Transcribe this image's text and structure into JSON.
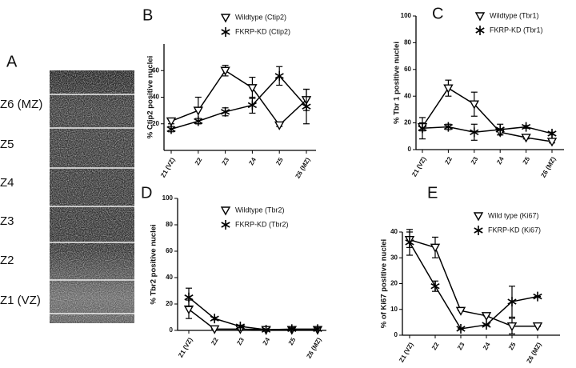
{
  "image_panel": {
    "label": "A",
    "zones": [
      "Z6 (MZ)",
      "Z5",
      "Z4",
      "Z3",
      "Z2",
      "Z1 (VZ)"
    ]
  },
  "chart_data": [
    {
      "type": "line",
      "panel_label": "B",
      "y_label": "% Ctip2 positive nuclei",
      "categories": [
        "Z1 (VZ)",
        "Z2",
        "Z3",
        "Z4",
        "Z5",
        "Z6 (MZ)"
      ],
      "ylim": [
        0,
        80
      ],
      "yticks": [
        20,
        40,
        60
      ],
      "series": [
        {
          "name": "Wildtype (Ctip2)",
          "color": "#000000",
          "marker": "triangle-down",
          "values": [
            22,
            30,
            60,
            47,
            19,
            38
          ],
          "errors": [
            2,
            10,
            4,
            8,
            1,
            8
          ]
        },
        {
          "name": "FKRP-KD (Ctip2)",
          "color": "#000000",
          "marker": "asterisk",
          "values": [
            16,
            22,
            29,
            34,
            56,
            33
          ],
          "errors": [
            2,
            2,
            3,
            6,
            7,
            13
          ]
        }
      ]
    },
    {
      "type": "line",
      "panel_label": "C",
      "y_label": "% Tbr 1 positive nuclei",
      "categories": [
        "Z1 (VZ)",
        "Z2",
        "Z3",
        "Z4",
        "Z5",
        "Z6 (MZ)"
      ],
      "ylim": [
        0,
        100
      ],
      "yticks": [
        0,
        20,
        40,
        60,
        80,
        100
      ],
      "series": [
        {
          "name": "Wildtype (Tbr1)",
          "color": "#000000",
          "marker": "triangle-down",
          "values": [
            17,
            46,
            34,
            13,
            9,
            6
          ],
          "errors": [
            3,
            6,
            9,
            2,
            1,
            1
          ]
        },
        {
          "name": "FKRP-KD (Tbr1)",
          "color": "#000000",
          "marker": "asterisk",
          "values": [
            16,
            17,
            13,
            15,
            17,
            12
          ],
          "errors": [
            8,
            2,
            6,
            4,
            1,
            1
          ]
        }
      ]
    },
    {
      "type": "line",
      "panel_label": "D",
      "y_label": "% Tbr2 positive nuclei",
      "categories": [
        "Z1 (VZ)",
        "Z2",
        "Z3",
        "Z4",
        "Z5",
        "Z6 (MZ)"
      ],
      "ylim": [
        0,
        100
      ],
      "yticks": [
        0,
        20,
        40,
        60,
        80,
        100
      ],
      "series": [
        {
          "name": "Wildtype (Tbr2)",
          "color": "#000000",
          "marker": "triangle-down",
          "values": [
            16,
            1,
            1,
            0.5,
            0.5,
            0.5
          ],
          "errors": [
            7,
            0,
            1,
            0,
            0,
            0
          ]
        },
        {
          "name": "FKRP-KD (Tbr2)",
          "color": "#000000",
          "marker": "asterisk",
          "values": [
            25,
            9,
            3,
            0.5,
            1,
            1
          ],
          "errors": [
            7,
            1,
            1,
            0,
            1,
            1
          ]
        }
      ]
    },
    {
      "type": "line",
      "panel_label": "E",
      "y_label": "% of Ki67 positive nuclei",
      "categories": [
        "Z1 (VZ)",
        "Z2",
        "Z3",
        "Z4",
        "Z5",
        "Z6 (MZ)"
      ],
      "ylim": [
        0,
        40
      ],
      "yticks": [
        0,
        10,
        20,
        30,
        40
      ],
      "series": [
        {
          "name": "Wild type (Ki67)",
          "color": "#000000",
          "marker": "triangle-down",
          "values": [
            37,
            34,
            9.5,
            7.5,
            3.5,
            3.5
          ],
          "errors": [
            3,
            4,
            0,
            0,
            3,
            0
          ]
        },
        {
          "name": "FKRP-KD (Ki67)",
          "color": "#000000",
          "marker": "asterisk",
          "values": [
            36,
            19,
            2.5,
            4,
            13,
            15
          ],
          "errors": [
            5,
            2,
            0,
            0,
            6,
            0
          ]
        }
      ]
    }
  ]
}
